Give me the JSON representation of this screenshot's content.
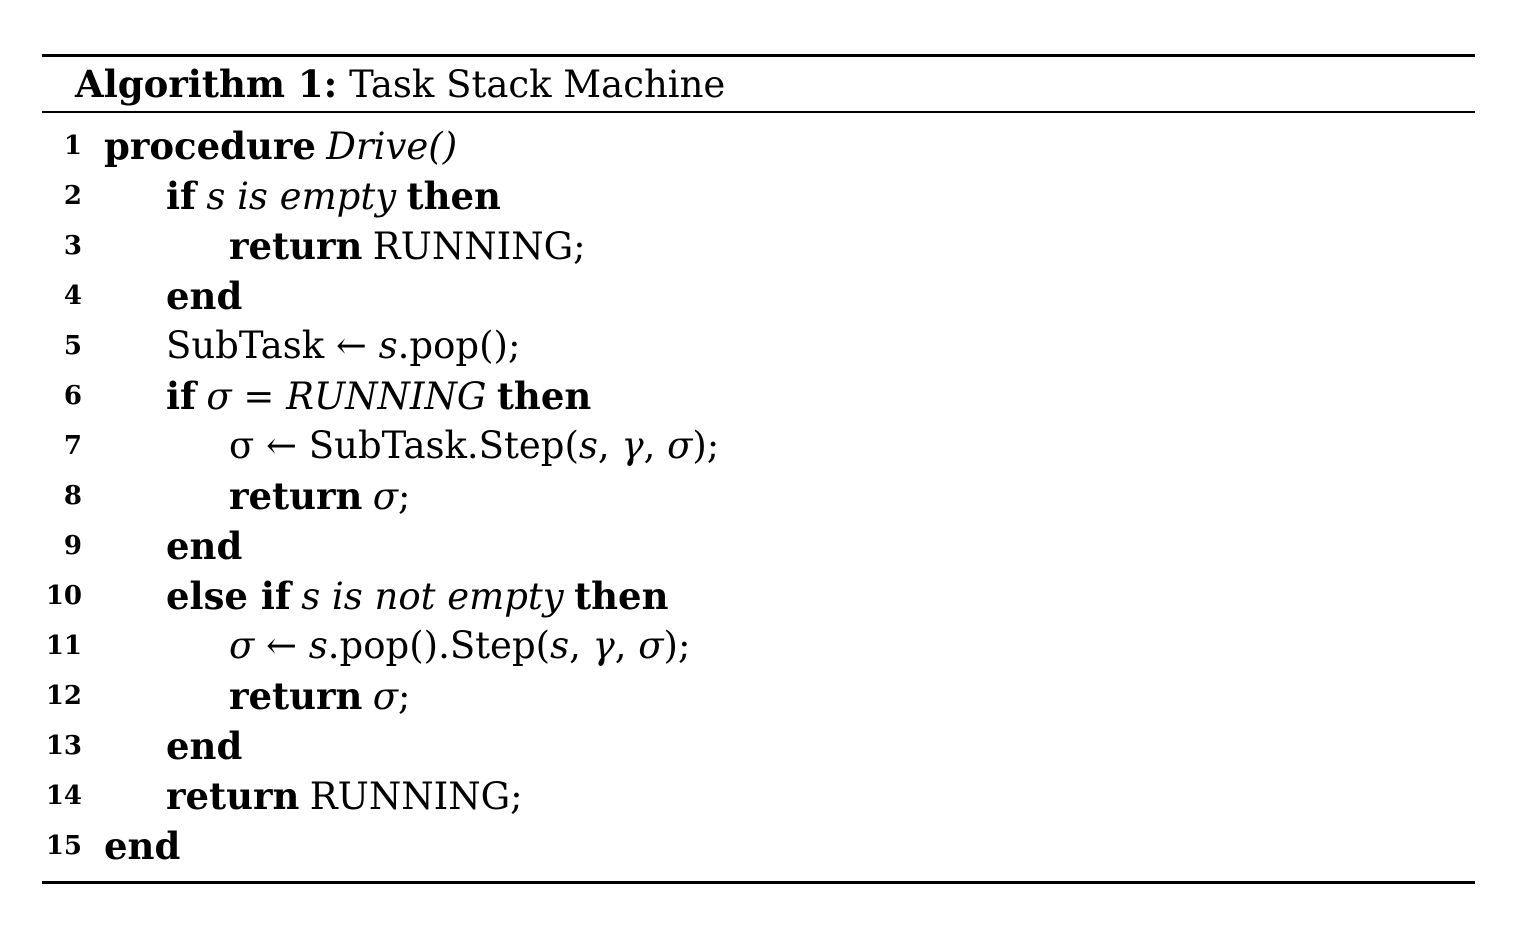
{
  "algorithm": {
    "label": "Algorithm 1:",
    "title": "Task Stack Machine"
  },
  "keywords": {
    "procedure": "procedure",
    "if": "if",
    "then": "then",
    "return": "return",
    "end": "end",
    "else_if": "else if"
  },
  "lines": [
    {
      "num": "1",
      "name": "Drive()"
    },
    {
      "num": "2",
      "cond": "s is empty"
    },
    {
      "num": "3",
      "value": "RUNNING;"
    },
    {
      "num": "4"
    },
    {
      "num": "5",
      "text": "SubTask ← ",
      "var": "s",
      "rest": ".pop();"
    },
    {
      "num": "6",
      "lhs": "σ",
      "op": " = ",
      "rhs": "RUNNING"
    },
    {
      "num": "7",
      "pre": "σ ← SubTask.Step(",
      "a1": "s",
      "sep1": ", ",
      "a2": "γ",
      "sep2": ", ",
      "a3": "σ",
      "post": ");"
    },
    {
      "num": "8",
      "var": "σ",
      "post": ";"
    },
    {
      "num": "9"
    },
    {
      "num": "10",
      "cond": "s is not empty"
    },
    {
      "num": "11",
      "lhs": "σ",
      "arrow": " ← ",
      "var": "s",
      "mid": ".pop().Step(",
      "a1": "s",
      "sep1": ", ",
      "a2": "γ",
      "sep2": ", ",
      "a3": "σ",
      "post": ");"
    },
    {
      "num": "12",
      "var": "σ",
      "post": ";"
    },
    {
      "num": "13"
    },
    {
      "num": "14",
      "value": "RUNNING;"
    },
    {
      "num": "15"
    }
  ]
}
